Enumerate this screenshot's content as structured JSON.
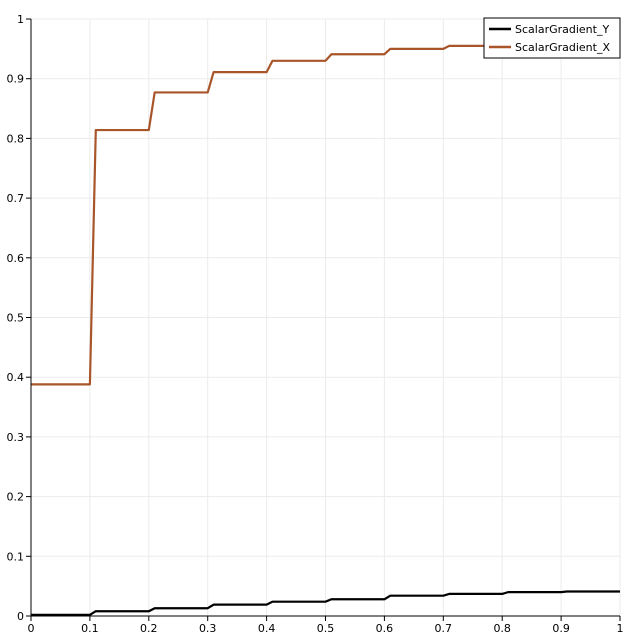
{
  "chart_data": {
    "type": "line",
    "title": "",
    "xlabel": "",
    "ylabel": "",
    "xlim": [
      0,
      1
    ],
    "ylim": [
      0,
      1
    ],
    "grid": true,
    "legend_position": "top-right",
    "x_ticks": [
      "0",
      "0.1",
      "0.2",
      "0.3",
      "0.4",
      "0.5",
      "0.6",
      "0.7",
      "0.8",
      "0.9",
      "1"
    ],
    "y_ticks": [
      "0",
      "0.1",
      "0.2",
      "0.3",
      "0.4",
      "0.5",
      "0.6",
      "0.7",
      "0.8",
      "0.9",
      "1"
    ],
    "x": [
      0,
      0.1,
      0.11,
      0.2,
      0.21,
      0.3,
      0.31,
      0.4,
      0.41,
      0.5,
      0.51,
      0.6,
      0.61,
      0.7,
      0.71,
      0.8,
      0.81,
      0.9,
      0.91,
      1.0
    ],
    "series": [
      {
        "name": "ScalarGradient_Y",
        "color": "#000000",
        "values": [
          0.002,
          0.002,
          0.008,
          0.008,
          0.013,
          0.013,
          0.019,
          0.019,
          0.024,
          0.024,
          0.028,
          0.028,
          0.034,
          0.034,
          0.037,
          0.037,
          0.04,
          0.04,
          0.041,
          0.041
        ]
      },
      {
        "name": "ScalarGradient_X",
        "color": "#a9552a",
        "values": [
          0.388,
          0.388,
          0.814,
          0.814,
          0.877,
          0.877,
          0.911,
          0.911,
          0.93,
          0.93,
          0.941,
          0.941,
          0.95,
          0.95,
          0.955,
          0.955,
          0.959,
          0.959,
          0.962,
          0.962
        ]
      }
    ]
  }
}
